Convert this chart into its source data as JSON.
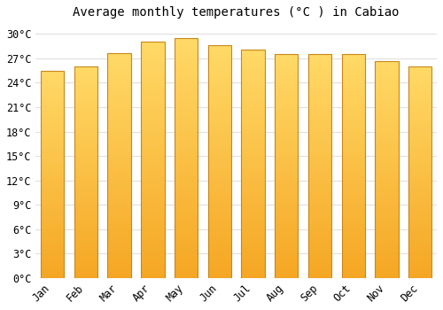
{
  "title": "Average monthly temperatures (°C ) in Cabiao",
  "months": [
    "Jan",
    "Feb",
    "Mar",
    "Apr",
    "May",
    "Jun",
    "Jul",
    "Aug",
    "Sep",
    "Oct",
    "Nov",
    "Dec"
  ],
  "values": [
    25.5,
    26.0,
    27.6,
    29.0,
    29.5,
    28.6,
    28.1,
    27.5,
    27.5,
    27.5,
    26.7,
    26.0
  ],
  "bar_color_top": "#FFD966",
  "bar_color_bottom": "#F5A623",
  "bar_edge_color": "#C8871A",
  "background_color": "#FFFFFF",
  "grid_color": "#E0E0E0",
  "ylim": [
    0,
    31
  ],
  "yticks": [
    0,
    3,
    6,
    9,
    12,
    15,
    18,
    21,
    24,
    27,
    30
  ],
  "title_fontsize": 10,
  "tick_fontsize": 8.5,
  "bar_width": 0.7
}
